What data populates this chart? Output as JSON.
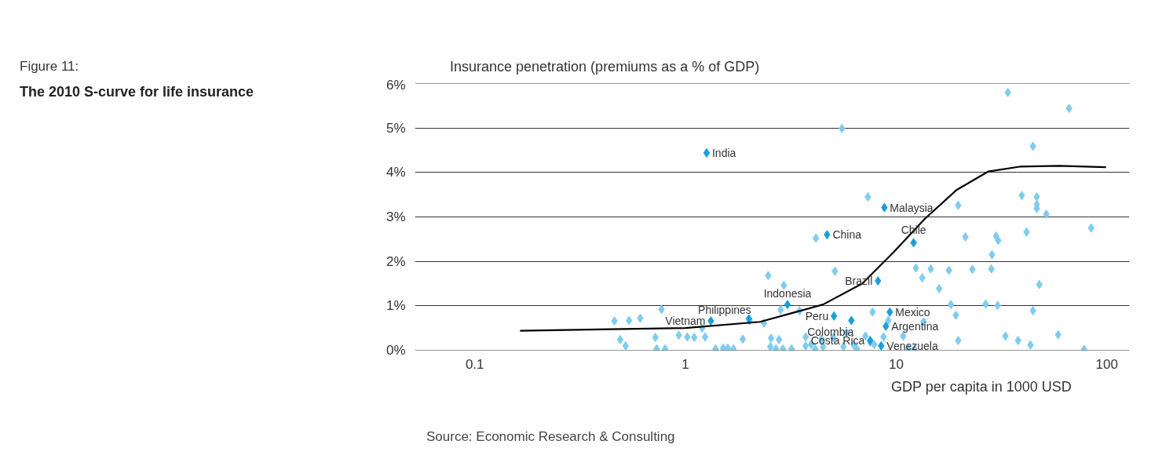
{
  "chart_data": {
    "type": "scatter",
    "title": "Figure 11:",
    "subtitle": "The 2010 S-curve for life insurance",
    "ylabel": "Insurance penetration (premiums as a % of GDP)",
    "xlabel": "GDP per capita in 1000 USD",
    "log": "x",
    "xlim": [
      0.052,
      128
    ],
    "ylim": [
      0,
      6
    ],
    "xticks": [
      0.1,
      1,
      10,
      100
    ],
    "yticks": [
      {
        "value": 0,
        "label": "0%"
      },
      {
        "value": 1,
        "label": "1%"
      },
      {
        "value": 2,
        "label": "2%"
      },
      {
        "value": 3,
        "label": "3%"
      },
      {
        "value": 4,
        "label": "4%"
      },
      {
        "value": 5,
        "label": "5%"
      },
      {
        "value": 6,
        "label": "6%"
      }
    ],
    "grid": "y",
    "marker": "diamond",
    "series": [
      {
        "color": "#7fcdee",
        "x": [
          0.46,
          0.54,
          0.61,
          0.49,
          0.52,
          0.72,
          0.73,
          0.77,
          0.8,
          0.93,
          1.02,
          1.1,
          1.2,
          1.24,
          1.39,
          1.51,
          1.59,
          1.69,
          1.87,
          2.02,
          2.36,
          2.47,
          2.55,
          2.83,
          2.78,
          2.53,
          2.69,
          2.9,
          3.19,
          2.93,
          3.48,
          3.72,
          3.72,
          3.95,
          4.13,
          4.16,
          4.42,
          4.5,
          5.12,
          5.03,
          5.53,
          5.62,
          5.82,
          6.29,
          6.51,
          7.34,
          7.73,
          7.15,
          7.53,
          7.87,
          8.71,
          9.18,
          10.8,
          11.4,
          12.2,
          12.4,
          13.3,
          13.5,
          14.6,
          16.0,
          17.8,
          18.2,
          19.2,
          19.7,
          19.7,
          21.3,
          23.0,
          26.6,
          28.3,
          30.3,
          28.5,
          29.8,
          30.5,
          33.0,
          33.9,
          37.9,
          39.5,
          41.6,
          43.4,
          44.6,
          44.6,
          46.5,
          46.5,
          46.5,
          47.8,
          51.6,
          58.7,
          66.2,
          78.0,
          84.2
        ],
        "values": [
          0.66,
          0.67,
          0.72,
          0.24,
          0.1,
          0.29,
          0.03,
          0.92,
          0.03,
          0.34,
          0.3,
          0.29,
          0.5,
          0.3,
          0.03,
          0.05,
          0.05,
          0.03,
          0.25,
          0.67,
          0.61,
          1.68,
          0.27,
          0.91,
          0.24,
          0.08,
          0.03,
          0.03,
          0.03,
          1.46,
          0.89,
          0.3,
          0.1,
          0.13,
          0.03,
          2.52,
          0.25,
          0.08,
          1.78,
          0.29,
          4.99,
          0.08,
          0.39,
          0.12,
          0.03,
          3.45,
          0.86,
          0.32,
          0.18,
          0.13,
          0.3,
          0.67,
          0.32,
          0.03,
          0.03,
          1.85,
          1.63,
          0.64,
          1.83,
          1.39,
          1.8,
          1.03,
          0.79,
          3.26,
          0.22,
          2.55,
          1.82,
          1.04,
          1.83,
          1.01,
          2.15,
          2.57,
          2.47,
          0.32,
          5.8,
          0.22,
          3.48,
          2.66,
          0.12,
          4.59,
          0.89,
          3.45,
          3.28,
          3.19,
          1.48,
          3.06,
          0.35,
          5.44,
          0.02,
          2.75
        ]
      },
      {
        "color": "#1a9fd9",
        "x": [
          1.26,
          8.79,
          4.7,
          12.1,
          8.2,
          3.05,
          2.0,
          1.32,
          5.07,
          6.13,
          9.33,
          8.94,
          7.53,
          8.49
        ],
        "values": [
          4.44,
          3.21,
          2.6,
          2.42,
          1.56,
          1.03,
          0.71,
          0.66,
          0.77,
          0.67,
          0.86,
          0.54,
          0.22,
          0.1
        ]
      },
      {
        "type": "line",
        "color": "#000000",
        "marker": "none",
        "x": [
          0.164,
          1,
          2.26,
          4.5,
          6.9,
          9.7,
          13.7,
          19.4,
          27.3,
          38.5,
          59.2,
          99
        ],
        "values": [
          0.44,
          0.5,
          0.64,
          1.03,
          1.5,
          2.2,
          2.96,
          3.61,
          4.02,
          4.13,
          4.15,
          4.12
        ]
      }
    ],
    "annotations": [
      {
        "text": "India",
        "x": 1.26,
        "y": 4.44
      },
      {
        "text": "Malaysia",
        "x": 8.79,
        "y": 3.21
      },
      {
        "text": "China",
        "x": 4.7,
        "y": 2.6
      },
      {
        "text": "Chile",
        "x": 12.1,
        "y": 2.42
      },
      {
        "text": "Brazil",
        "x": 8.2,
        "y": 1.56
      },
      {
        "text": "Indonesia",
        "x": 3.05,
        "y": 1.03
      },
      {
        "text": "Philippines",
        "x": 2.0,
        "y": 0.71
      },
      {
        "text": "Vietnam",
        "x": 1.32,
        "y": 0.66
      },
      {
        "text": "Peru",
        "x": 5.07,
        "y": 0.77
      },
      {
        "text": "Colombia",
        "x": 6.13,
        "y": 0.67
      },
      {
        "text": "Mexico",
        "x": 9.33,
        "y": 0.86
      },
      {
        "text": "Argentina",
        "x": 8.94,
        "y": 0.54
      },
      {
        "text": "Costa Rica",
        "x": 7.53,
        "y": 0.22
      },
      {
        "text": "Venezuela",
        "x": 8.49,
        "y": 0.1
      },
      "Source: Economic Research & Consulting"
    ]
  }
}
